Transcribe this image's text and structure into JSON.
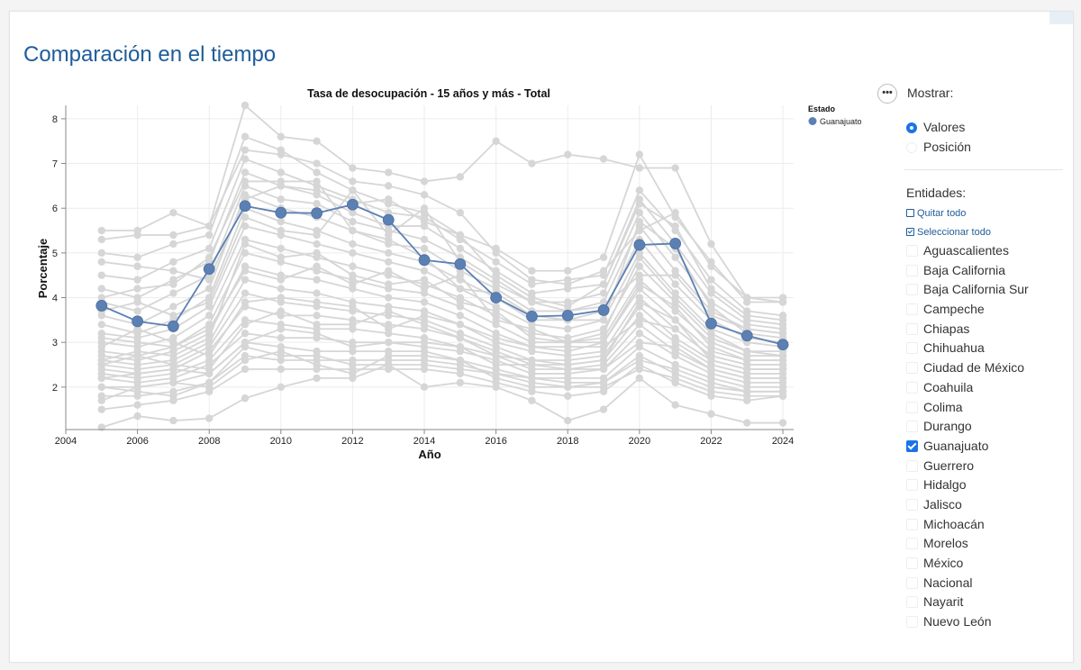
{
  "page": {
    "title": "Comparación en el tiempo"
  },
  "chart_data": {
    "type": "line",
    "title": "Tasa de desocupación - 15 años y más - Total",
    "xlabel": "Año",
    "ylabel": "Porcentaje",
    "xlim": [
      2004,
      2024.3
    ],
    "ylim": [
      1.05,
      8.3
    ],
    "x_ticks": [
      2004,
      2006,
      2008,
      2010,
      2012,
      2014,
      2016,
      2018,
      2020,
      2022,
      2024
    ],
    "y_ticks": [
      2,
      3,
      4,
      5,
      6,
      7,
      8
    ],
    "grid": true,
    "legend": {
      "title": "Estado",
      "placement": "top-right",
      "entries": [
        "Guanajuato"
      ]
    },
    "colors": {
      "highlight": "#5b80b4",
      "background_series": "#d6d6d6"
    },
    "x": [
      2005,
      2006,
      2007,
      2008,
      2009,
      2010,
      2011,
      2012,
      2013,
      2014,
      2015,
      2016,
      2017,
      2018,
      2019,
      2020,
      2021,
      2022,
      2023,
      2024
    ],
    "series": [
      {
        "name": "Guanajuato",
        "highlighted": true,
        "values": [
          3.82,
          3.47,
          3.36,
          4.64,
          6.05,
          5.9,
          5.89,
          6.08,
          5.74,
          4.84,
          4.75,
          4.0,
          3.58,
          3.6,
          3.72,
          5.18,
          5.21,
          3.42,
          3.15,
          2.95
        ]
      },
      {
        "values": [
          5.5,
          5.5,
          5.9,
          5.6,
          8.3,
          7.6,
          7.5,
          6.9,
          6.8,
          6.6,
          6.7,
          7.5,
          7.0,
          7.2,
          7.1,
          6.9,
          6.9,
          5.2,
          4.0,
          4.0
        ]
      },
      {
        "values": [
          5.0,
          4.9,
          5.2,
          5.4,
          7.6,
          7.3,
          6.8,
          6.4,
          6.1,
          5.9,
          5.4,
          5.1,
          4.6,
          4.6,
          4.9,
          7.2,
          5.8,
          4.8,
          3.9,
          3.9
        ]
      },
      {
        "values": [
          4.5,
          4.4,
          4.8,
          5.1,
          7.1,
          6.8,
          6.5,
          6.2,
          5.9,
          5.8,
          5.3,
          4.8,
          4.3,
          4.4,
          4.5,
          6.4,
          5.5,
          4.4,
          3.7,
          3.6
        ]
      },
      {
        "values": [
          4.2,
          4.0,
          4.4,
          4.8,
          6.8,
          6.5,
          6.3,
          5.9,
          5.6,
          5.6,
          5.1,
          4.6,
          4.1,
          4.2,
          4.3,
          6.2,
          5.2,
          4.1,
          3.5,
          3.4
        ]
      },
      {
        "values": [
          3.9,
          3.7,
          4.1,
          4.5,
          6.5,
          6.2,
          6.1,
          5.7,
          5.5,
          5.3,
          4.9,
          4.4,
          3.9,
          3.9,
          4.1,
          5.9,
          4.9,
          3.9,
          3.4,
          3.3
        ]
      },
      {
        "values": [
          3.6,
          3.4,
          3.8,
          4.2,
          6.3,
          6.0,
          5.8,
          5.5,
          5.2,
          5.1,
          4.6,
          4.2,
          3.7,
          3.7,
          3.9,
          5.6,
          4.6,
          3.7,
          3.3,
          3.2
        ]
      },
      {
        "values": [
          3.4,
          3.2,
          3.5,
          4.0,
          6.0,
          5.7,
          5.5,
          5.2,
          5.0,
          4.8,
          4.4,
          4.0,
          3.5,
          3.5,
          3.7,
          5.3,
          4.3,
          3.5,
          3.1,
          3.0
        ]
      },
      {
        "values": [
          3.2,
          3.1,
          3.3,
          3.8,
          5.6,
          5.4,
          5.2,
          5.0,
          4.8,
          4.6,
          4.2,
          3.8,
          3.4,
          3.3,
          3.5,
          5.0,
          4.1,
          3.3,
          3.0,
          2.9
        ]
      },
      {
        "values": [
          3.0,
          2.9,
          3.1,
          3.6,
          5.3,
          5.1,
          4.9,
          4.7,
          4.5,
          4.3,
          4.0,
          3.6,
          3.2,
          3.1,
          3.3,
          4.7,
          3.9,
          3.1,
          2.8,
          2.8
        ]
      },
      {
        "values": [
          2.8,
          2.7,
          2.9,
          3.4,
          5.0,
          4.8,
          4.6,
          4.4,
          4.2,
          4.1,
          3.8,
          3.4,
          3.0,
          3.0,
          3.1,
          4.4,
          3.7,
          3.0,
          2.7,
          2.7
        ]
      },
      {
        "values": [
          2.7,
          2.6,
          2.8,
          3.2,
          4.7,
          4.5,
          4.4,
          4.2,
          4.0,
          3.9,
          3.6,
          3.2,
          2.9,
          2.8,
          3.0,
          4.2,
          3.5,
          2.8,
          2.6,
          2.6
        ]
      },
      {
        "values": [
          2.6,
          2.5,
          2.6,
          3.0,
          4.4,
          4.2,
          4.1,
          3.9,
          3.8,
          3.7,
          3.4,
          3.0,
          2.8,
          2.7,
          2.8,
          4.0,
          3.3,
          2.7,
          2.5,
          2.5
        ]
      },
      {
        "values": [
          2.5,
          2.4,
          2.5,
          2.9,
          4.1,
          3.9,
          3.8,
          3.7,
          3.6,
          3.5,
          3.2,
          2.9,
          2.6,
          2.6,
          2.7,
          3.8,
          3.1,
          2.6,
          2.4,
          2.4
        ]
      },
      {
        "values": [
          2.4,
          2.3,
          2.4,
          2.8,
          3.8,
          3.6,
          3.6,
          3.5,
          3.4,
          3.3,
          3.1,
          2.8,
          2.5,
          2.5,
          2.6,
          3.6,
          3.0,
          2.5,
          2.3,
          2.3
        ]
      },
      {
        "values": [
          2.3,
          2.2,
          2.3,
          2.6,
          3.5,
          3.4,
          3.3,
          3.3,
          3.2,
          3.1,
          2.9,
          2.7,
          2.4,
          2.4,
          2.5,
          3.4,
          2.8,
          2.4,
          2.2,
          2.2
        ]
      },
      {
        "values": [
          2.2,
          2.1,
          2.2,
          2.5,
          3.2,
          3.1,
          3.1,
          3.0,
          3.0,
          2.9,
          2.8,
          2.6,
          2.3,
          2.3,
          2.4,
          3.2,
          2.7,
          2.3,
          2.1,
          2.1
        ]
      },
      {
        "values": [
          2.0,
          2.0,
          2.1,
          2.3,
          3.0,
          2.9,
          2.8,
          2.8,
          2.8,
          2.8,
          2.6,
          2.4,
          2.2,
          2.2,
          2.2,
          2.9,
          2.5,
          2.2,
          2.0,
          2.0
        ]
      },
      {
        "values": [
          1.8,
          1.8,
          1.9,
          2.1,
          2.7,
          2.6,
          2.6,
          2.6,
          2.6,
          2.6,
          2.5,
          2.3,
          2.1,
          2.0,
          2.1,
          2.7,
          2.3,
          2.0,
          1.9,
          1.9
        ]
      },
      {
        "values": [
          1.5,
          1.6,
          1.7,
          1.9,
          2.4,
          2.4,
          2.4,
          2.4,
          2.4,
          2.4,
          2.3,
          2.1,
          1.9,
          1.8,
          1.9,
          2.5,
          2.1,
          1.8,
          1.7,
          1.8
        ]
      },
      {
        "values": [
          1.1,
          1.35,
          1.25,
          1.3,
          1.75,
          2.0,
          2.2,
          2.2,
          2.5,
          2.0,
          2.1,
          2.0,
          1.7,
          1.25,
          1.5,
          2.2,
          1.6,
          1.4,
          1.2,
          1.2
        ]
      },
      {
        "values": [
          5.3,
          5.4,
          5.4,
          5.6,
          7.3,
          7.2,
          7.0,
          6.6,
          6.5,
          6.3,
          5.9,
          5.0,
          4.4,
          4.3,
          4.6,
          5.5,
          5.9,
          4.7,
          4.0,
          3.9
        ]
      },
      {
        "values": [
          4.8,
          4.7,
          4.6,
          4.4,
          6.2,
          6.5,
          6.4,
          6.1,
          6.2,
          5.7,
          5.4,
          4.5,
          4.0,
          3.8,
          4.3,
          6.1,
          5.6,
          4.2,
          3.6,
          3.5
        ]
      },
      {
        "values": [
          3.7,
          3.9,
          3.6,
          3.9,
          5.8,
          5.5,
          5.4,
          6.4,
          5.4,
          6.0,
          4.8,
          4.3,
          3.9,
          3.7,
          3.8,
          4.5,
          4.5,
          3.6,
          3.3,
          3.2
        ]
      },
      {
        "values": [
          3.1,
          3.0,
          2.9,
          3.3,
          4.6,
          4.4,
          4.7,
          4.3,
          4.6,
          4.2,
          4.5,
          3.5,
          3.3,
          3.0,
          3.2,
          4.9,
          4.0,
          3.2,
          2.8,
          2.7
        ]
      },
      {
        "values": [
          2.6,
          2.8,
          2.7,
          3.1,
          5.2,
          4.9,
          5.0,
          4.5,
          4.3,
          4.4,
          3.9,
          3.7,
          3.1,
          3.0,
          3.0,
          4.3,
          3.8,
          2.9,
          2.6,
          2.6
        ]
      },
      {
        "values": [
          2.9,
          3.3,
          3.0,
          2.7,
          3.9,
          4.0,
          3.9,
          3.8,
          3.3,
          3.6,
          3.4,
          3.1,
          2.9,
          2.9,
          2.9,
          3.5,
          3.3,
          2.7,
          2.5,
          2.5
        ]
      },
      {
        "values": [
          2.5,
          2.7,
          2.5,
          2.4,
          3.4,
          3.7,
          3.4,
          3.4,
          3.7,
          3.4,
          3.1,
          2.7,
          2.6,
          2.5,
          2.6,
          3.9,
          3.5,
          2.6,
          2.4,
          2.4
        ]
      },
      {
        "values": [
          2.2,
          2.3,
          2.4,
          2.3,
          3.0,
          3.3,
          3.2,
          2.9,
          3.0,
          3.0,
          2.9,
          2.5,
          2.5,
          2.4,
          2.4,
          3.0,
          2.9,
          2.4,
          2.2,
          2.2
        ]
      },
      {
        "values": [
          2.0,
          1.9,
          1.8,
          2.1,
          2.9,
          2.7,
          2.7,
          2.5,
          2.5,
          2.5,
          2.4,
          2.3,
          2.2,
          2.1,
          2.1,
          2.6,
          2.4,
          2.1,
          1.9,
          1.9
        ]
      },
      {
        "values": [
          1.7,
          2.0,
          2.1,
          2.0,
          2.6,
          2.8,
          2.5,
          2.3,
          2.7,
          2.7,
          2.6,
          2.2,
          2.0,
          2.0,
          2.0,
          2.4,
          2.2,
          1.9,
          1.8,
          1.8
        ]
      },
      {
        "values": [
          4.0,
          4.2,
          4.3,
          4.9,
          6.6,
          6.6,
          6.6,
          5.5,
          5.3,
          4.9,
          4.2,
          4.1,
          3.6,
          3.5,
          3.5,
          5.7,
          5.1,
          3.8,
          3.2,
          3.1
        ]
      }
    ]
  },
  "panel": {
    "more_icon": "ellipsis-icon",
    "more_label": "•••",
    "show_label": "Mostrar:",
    "radio_options": [
      {
        "label": "Valores",
        "selected": true
      },
      {
        "label": "Posición",
        "selected": false
      }
    ],
    "entities_label": "Entidades:",
    "clear_all": "Quitar todo",
    "select_all": "Seleccionar todo",
    "entities": [
      {
        "label": "Aguascalientes",
        "checked": false
      },
      {
        "label": "Baja California",
        "checked": false
      },
      {
        "label": "Baja California Sur",
        "checked": false
      },
      {
        "label": "Campeche",
        "checked": false
      },
      {
        "label": "Chiapas",
        "checked": false
      },
      {
        "label": "Chihuahua",
        "checked": false
      },
      {
        "label": "Ciudad de México",
        "checked": false
      },
      {
        "label": "Coahuila",
        "checked": false
      },
      {
        "label": "Colima",
        "checked": false
      },
      {
        "label": "Durango",
        "checked": false
      },
      {
        "label": "Guanajuato",
        "checked": true
      },
      {
        "label": "Guerrero",
        "checked": false
      },
      {
        "label": "Hidalgo",
        "checked": false
      },
      {
        "label": "Jalisco",
        "checked": false
      },
      {
        "label": "Michoacán",
        "checked": false
      },
      {
        "label": "Morelos",
        "checked": false
      },
      {
        "label": "México",
        "checked": false
      },
      {
        "label": "Nacional",
        "checked": false
      },
      {
        "label": "Nayarit",
        "checked": false
      },
      {
        "label": "Nuevo León",
        "checked": false
      }
    ]
  }
}
